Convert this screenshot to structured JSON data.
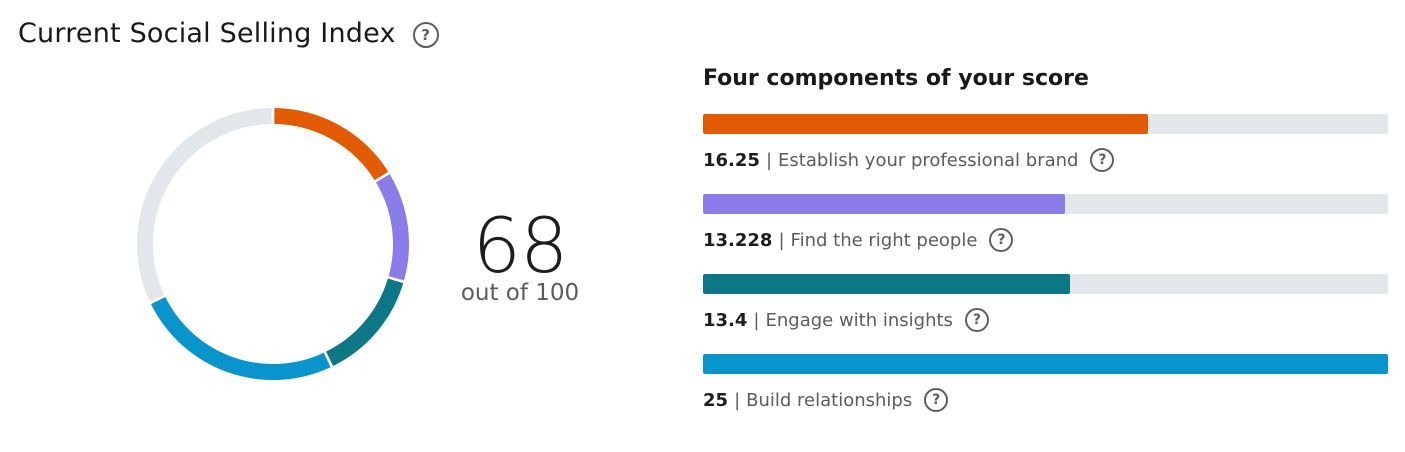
{
  "header": {
    "title": "Current Social Selling Index",
    "help_icon": "question-circle-icon",
    "help_glyph": "?"
  },
  "ssi": {
    "score": "68",
    "out_of": "out of 100",
    "max": 100
  },
  "components_section": {
    "heading": "Four components of your score",
    "separator": "|",
    "max_per_component": 25,
    "track_color": "#e2e7ec",
    "items": [
      {
        "score": "16.25",
        "value": 16.25,
        "label": "Establish your professional brand",
        "color": "#e35b00",
        "help_icon": "question-circle-icon"
      },
      {
        "score": "13.228",
        "value": 13.228,
        "label": "Find the right people",
        "color": "#8a7de9",
        "help_icon": "question-circle-icon"
      },
      {
        "score": "13.4",
        "value": 13.4,
        "label": "Engage with insights",
        "color": "#0d7885",
        "help_icon": "question-circle-icon"
      },
      {
        "score": "25",
        "value": 25,
        "label": "Build relationships",
        "color": "#0894cd",
        "help_icon": "question-circle-icon"
      }
    ]
  }
}
